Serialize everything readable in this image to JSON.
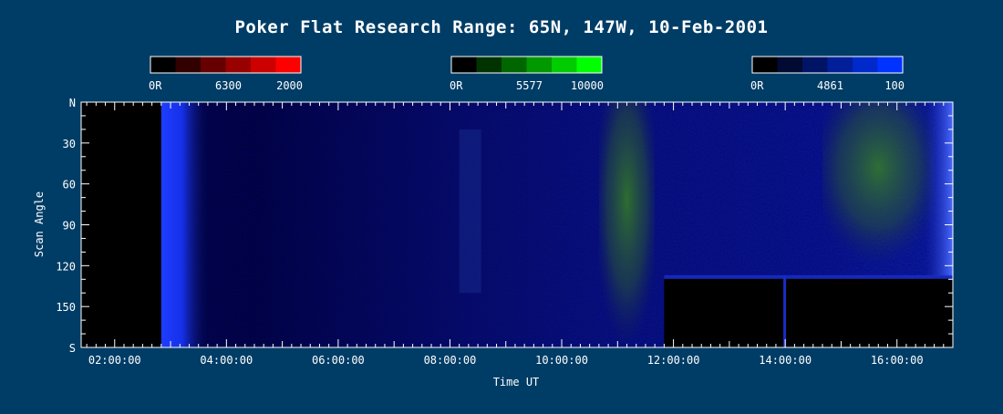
{
  "chart_data": {
    "type": "heatmap",
    "title": "Poker Flat Research Range: 65N, 147W, 10-Feb-2001",
    "xlabel": "Time UT",
    "ylabel": "Scan Angle",
    "x_range": [
      "01:24:00",
      "17:00:00"
    ],
    "x_ticks": [
      "02:00:00",
      "04:00:00",
      "06:00:00",
      "08:00:00",
      "10:00:00",
      "12:00:00",
      "14:00:00",
      "16:00:00"
    ],
    "y_range": [
      0,
      180
    ],
    "y_ticks": [
      {
        "value": 0,
        "label": "N"
      },
      {
        "value": 30,
        "label": "30"
      },
      {
        "value": 60,
        "label": "60"
      },
      {
        "value": 90,
        "label": "90"
      },
      {
        "value": 120,
        "label": "120"
      },
      {
        "value": 150,
        "label": "150"
      },
      {
        "value": 180,
        "label": "S"
      }
    ],
    "colorbars": [
      {
        "name": "6300",
        "unit_min": "0R",
        "max": "2000",
        "color": "#ff0000",
        "segments": 6
      },
      {
        "name": "5577",
        "unit_min": "0R",
        "max": "10000",
        "color": "#00ff00",
        "segments": 6
      },
      {
        "name": "4861",
        "unit_min": "0R",
        "max": "100",
        "color": "#0033ff",
        "segments": 6
      }
    ],
    "features": [
      {
        "name": "no-data",
        "t_start": "01:24:00",
        "t_end": "02:50:00",
        "angle_start": 0,
        "angle_end": 180
      },
      {
        "name": "4861-bright-band",
        "t_start": "02:50:00",
        "t_end": "03:40:00",
        "angle_start": 0,
        "angle_end": 180
      },
      {
        "name": "5577-emission",
        "t_start": "10:40:00",
        "t_end": "11:40:00",
        "angle_start": 0,
        "angle_end": 180
      },
      {
        "name": "5577-emission",
        "t_start": "14:40:00",
        "t_end": "16:40:00",
        "angle_start": 0,
        "angle_end": 120
      },
      {
        "name": "no-data",
        "t_start": "11:50:00",
        "t_end": "17:00:00",
        "angle_start": 128,
        "angle_end": 180
      },
      {
        "name": "4861-bright-band",
        "t_start": "16:30:00",
        "t_end": "17:00:00",
        "angle_start": 0,
        "angle_end": 128
      }
    ]
  }
}
